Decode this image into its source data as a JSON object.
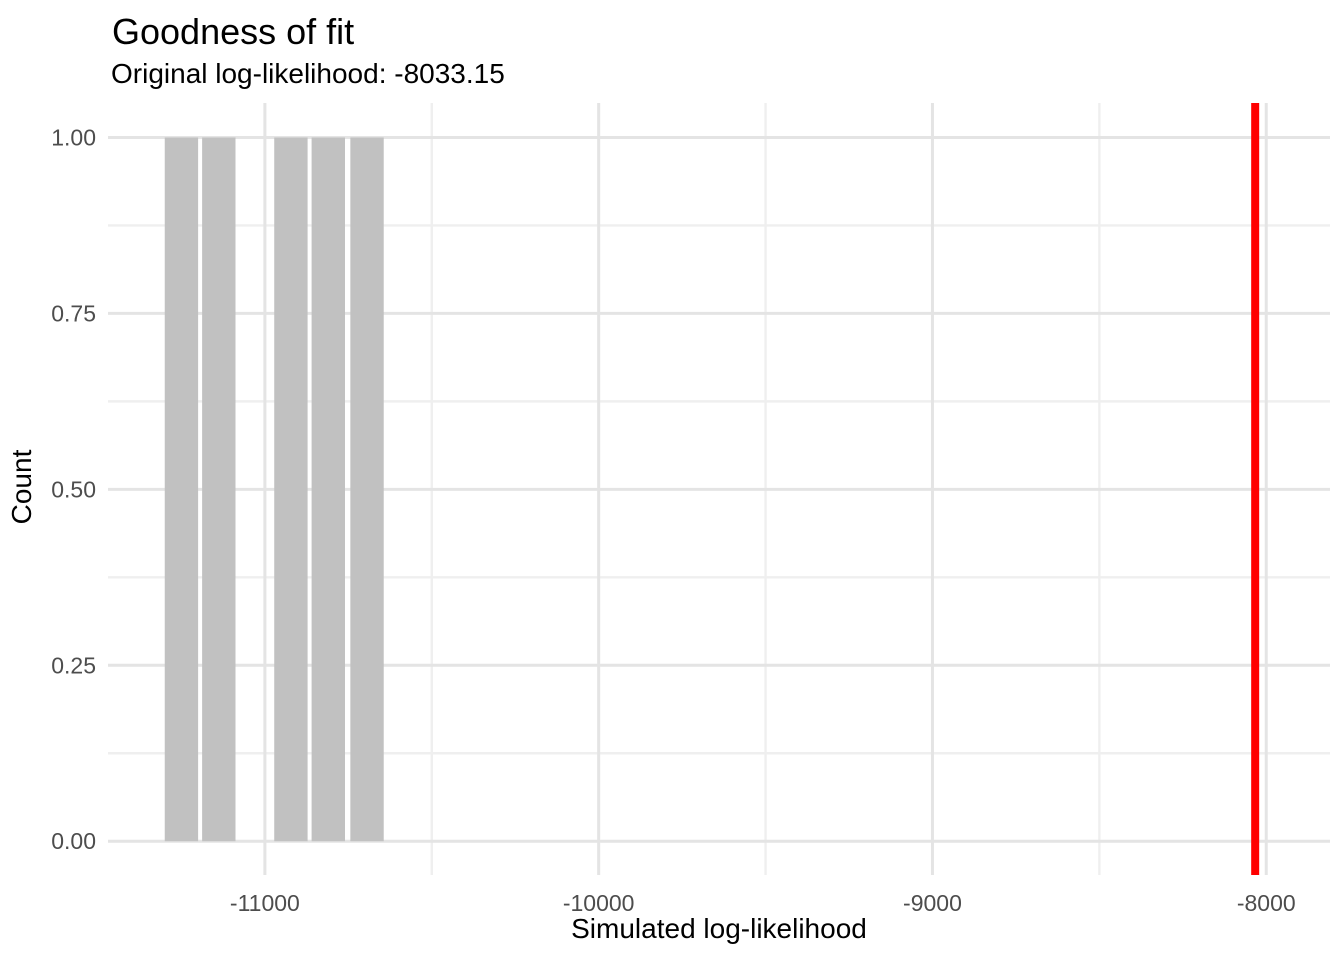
{
  "chart_data": {
    "type": "bar",
    "subtype": "histogram",
    "title": "Goodness of fit",
    "subtitle": "Original log-likelihood: -8033.15",
    "xlabel": "Simulated log-likelihood",
    "ylabel": "Count",
    "x_ticks": [
      -11000,
      -10000,
      -9000,
      -8000
    ],
    "x_tick_labels": [
      "-11000",
      "-10000",
      "-9000",
      "-8000"
    ],
    "x_minor_ticks": [
      -10500,
      -9500,
      -8500
    ],
    "y_ticks": [
      0,
      0.25,
      0.5,
      0.75,
      1
    ],
    "y_tick_labels": [
      "0.00",
      "0.25",
      "0.50",
      "0.75",
      "1.00"
    ],
    "y_minor_ticks": [
      0.125,
      0.375,
      0.625,
      0.875
    ],
    "xlim": [
      -11470,
      -7809
    ],
    "ylim": [
      -0.048,
      1.049
    ],
    "binwidth": 112,
    "bins": [
      {
        "center": -11250,
        "count": 1
      },
      {
        "center": -11138,
        "count": 1
      },
      {
        "center": -10922,
        "count": 1
      },
      {
        "center": -10810,
        "count": 1
      },
      {
        "center": -10694,
        "count": 1
      }
    ],
    "vline": {
      "value": -8033.15,
      "color": "#FF0000",
      "meaning": "original log-likelihood"
    },
    "grid": true,
    "legend": false,
    "colors": {
      "bar_fill": "#C1C1C1",
      "grid_major": "#E4E4E4",
      "grid_minor": "#EFEFEF",
      "tick_label": "#4D4D4D",
      "text": "#000000",
      "background": "#FFFFFF"
    }
  }
}
